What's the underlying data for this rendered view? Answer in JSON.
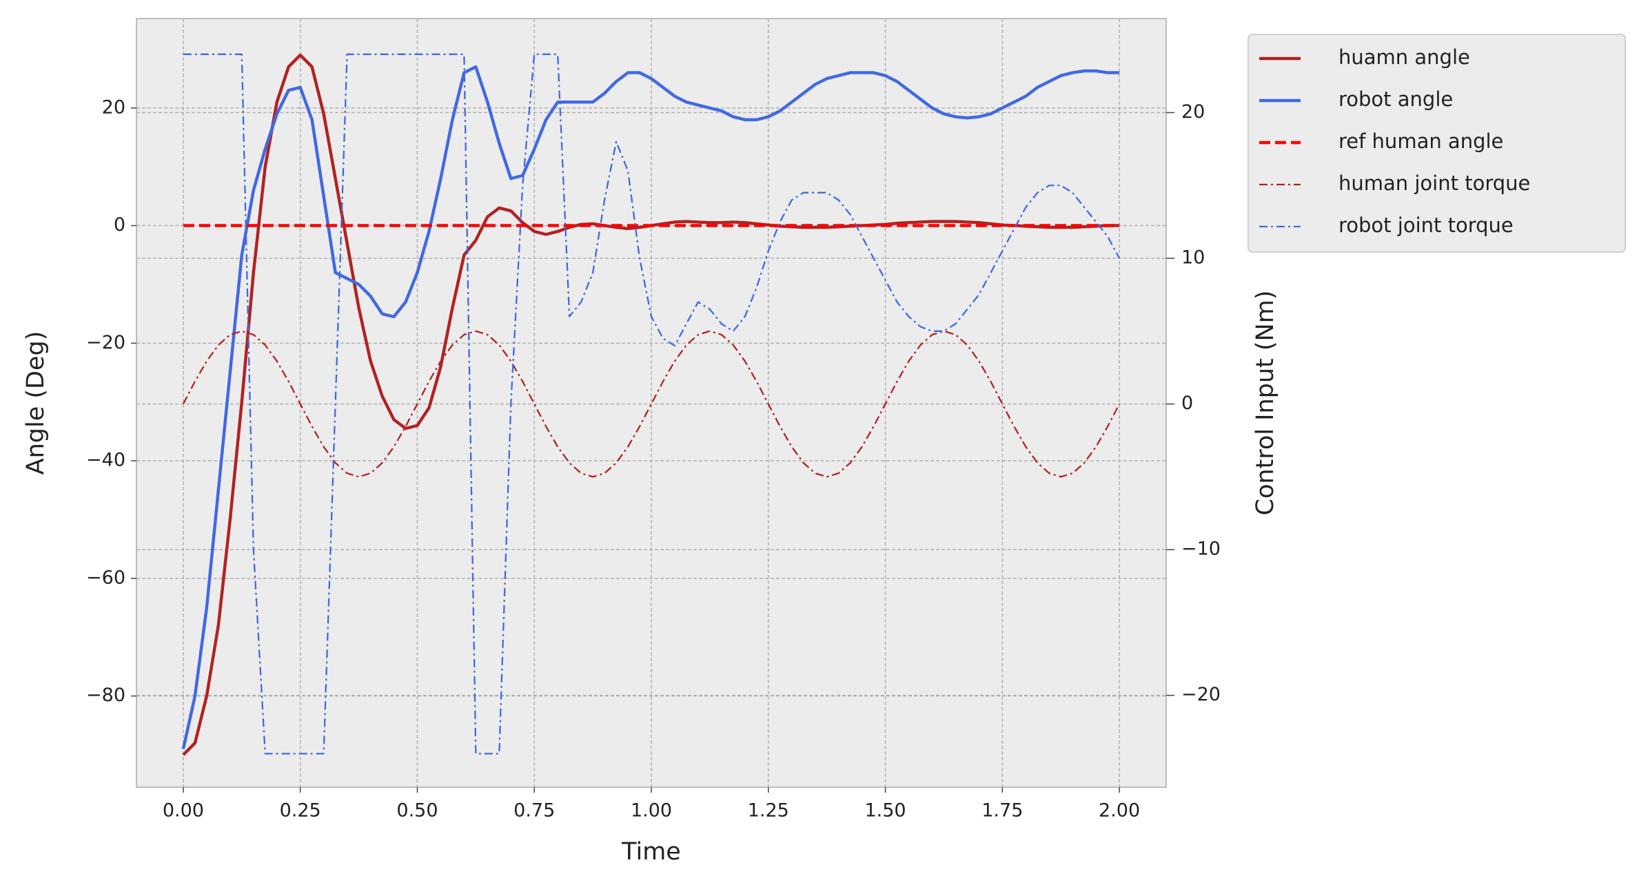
{
  "chart_data": {
    "type": "line",
    "xlabel": "Time",
    "ylabel": "Angle (Deg)",
    "y2label": "Control Input (Nm)",
    "xlim": [
      -0.1,
      2.1
    ],
    "ylim": [
      -95.5,
      35.2
    ],
    "y2lim": [
      -26.3,
      26.45
    ],
    "xticks": [
      {
        "value": 0,
        "label": "0.00"
      },
      {
        "value": 0.25,
        "label": "0.25"
      },
      {
        "value": 0.5,
        "label": "0.50"
      },
      {
        "value": 0.75,
        "label": "0.75"
      },
      {
        "value": 1,
        "label": "1.00"
      },
      {
        "value": 1.25,
        "label": "1.25"
      },
      {
        "value": 1.5,
        "label": "1.50"
      },
      {
        "value": 1.75,
        "label": "1.75"
      },
      {
        "value": 2,
        "label": "2.00"
      }
    ],
    "yticks": [
      {
        "value": -80,
        "label": "−80"
      },
      {
        "value": -60,
        "label": "−60"
      },
      {
        "value": -40,
        "label": "−40"
      },
      {
        "value": -20,
        "label": "−20"
      },
      0,
      20
    ],
    "y2ticks": [
      {
        "value": -20,
        "label": "−20"
      },
      {
        "value": -10,
        "label": "−10"
      },
      0,
      10,
      20
    ],
    "grid": true,
    "legend": "outside upper right",
    "x": [
      0,
      0.025,
      0.05,
      0.075,
      0.1,
      0.125,
      0.15,
      0.175,
      0.2,
      0.225,
      0.25,
      0.275,
      0.3,
      0.325,
      0.35,
      0.375,
      0.4,
      0.425,
      0.45,
      0.475,
      0.5,
      0.525,
      0.55,
      0.575,
      0.6,
      0.625,
      0.65,
      0.675,
      0.7,
      0.725,
      0.75,
      0.775,
      0.8,
      0.825,
      0.85,
      0.875,
      0.9,
      0.925,
      0.95,
      0.975,
      1,
      1.025,
      1.05,
      1.075,
      1.1,
      1.125,
      1.15,
      1.175,
      1.2,
      1.225,
      1.25,
      1.275,
      1.3,
      1.325,
      1.35,
      1.375,
      1.4,
      1.425,
      1.45,
      1.475,
      1.5,
      1.525,
      1.55,
      1.575,
      1.6,
      1.625,
      1.65,
      1.675,
      1.7,
      1.725,
      1.75,
      1.775,
      1.8,
      1.825,
      1.85,
      1.875,
      1.9,
      1.925,
      1.95,
      1.975,
      2
    ],
    "series": [
      {
        "name": "huamn angle",
        "color": "#b22222",
        "linestyle": "solid",
        "linewidth": 4.5,
        "values": [
          -90,
          -88,
          -80,
          -68,
          -50,
          -30,
          -8,
          10,
          21,
          27,
          29,
          27,
          19,
          8,
          -3,
          -14,
          -23,
          -29,
          -33,
          -34.5,
          -34,
          -31,
          -24,
          -14,
          -5,
          -2.5,
          1.5,
          3,
          2.5,
          0.5,
          -1,
          -1.5,
          -1,
          -0.3,
          0.2,
          0.3,
          0,
          -0.3,
          -0.5,
          -0.3,
          0,
          0.3,
          0.6,
          0.7,
          0.6,
          0.5,
          0.5,
          0.6,
          0.5,
          0.3,
          0.1,
          -0.1,
          -0.2,
          -0.3,
          -0.3,
          -0.3,
          -0.2,
          -0.1,
          0,
          0.1,
          0.2,
          0.4,
          0.5,
          0.6,
          0.7,
          0.7,
          0.7,
          0.6,
          0.5,
          0.3,
          0.1,
          0,
          -0.1,
          -0.2,
          -0.3,
          -0.3,
          -0.3,
          -0.2,
          -0.1,
          0,
          0
        ]
      },
      {
        "name": "robot angle",
        "color": "#4169e1",
        "linestyle": "solid",
        "linewidth": 4.5,
        "values": [
          -89,
          -80,
          -65,
          -45,
          -25,
          -5,
          6,
          13,
          19,
          23,
          23.5,
          18,
          5,
          -8,
          -9,
          -10,
          -12,
          -15,
          -15.5,
          -13,
          -8,
          -1,
          8,
          18,
          26,
          27,
          21,
          14,
          8,
          8.5,
          13,
          18,
          21,
          21,
          21,
          21,
          22.5,
          24.5,
          26,
          26,
          25,
          23.5,
          22,
          21,
          20.5,
          20,
          19.5,
          18.5,
          18,
          18,
          18.5,
          19.5,
          21,
          22.5,
          24,
          25,
          25.5,
          26,
          26,
          26,
          25.5,
          24.5,
          23,
          21.5,
          20,
          19,
          18.5,
          18.3,
          18.5,
          19,
          20,
          21,
          22,
          23.5,
          24.5,
          25.5,
          26,
          26.3,
          26.3,
          26,
          26
        ]
      },
      {
        "name": "ref human angle",
        "color": "#ff0000",
        "linestyle": "dashed",
        "linewidth": 4.5,
        "x": [
          0,
          2
        ],
        "values": [
          0,
          0
        ]
      },
      {
        "name": "human joint torque",
        "color": "#b22222",
        "linestyle": "dashdot",
        "linewidth": 2.3,
        "axis": "y2",
        "values": [
          0,
          1.545,
          2.939,
          4.045,
          4.755,
          5,
          4.755,
          4.045,
          2.939,
          1.545,
          0,
          -1.545,
          -2.939,
          -4.045,
          -4.755,
          -5,
          -4.755,
          -4.045,
          -2.939,
          -1.545,
          0,
          1.545,
          2.939,
          4.045,
          4.755,
          5,
          4.755,
          4.045,
          2.939,
          1.545,
          0,
          -1.545,
          -2.939,
          -4.045,
          -4.755,
          -5,
          -4.755,
          -4.045,
          -2.939,
          -1.545,
          0,
          1.545,
          2.939,
          4.045,
          4.755,
          5,
          4.755,
          4.045,
          2.939,
          1.545,
          0,
          -1.545,
          -2.939,
          -4.045,
          -4.755,
          -5,
          -4.755,
          -4.045,
          -2.939,
          -1.545,
          0,
          1.545,
          2.939,
          4.045,
          4.755,
          5,
          4.755,
          4.045,
          2.939,
          1.545,
          0,
          -1.545,
          -2.939,
          -4.045,
          -4.755,
          -5,
          -4.755,
          -4.045,
          -2.939,
          -1.545,
          0
        ]
      },
      {
        "name": "robot joint torque",
        "color": "#4169e1",
        "linestyle": "dashdot",
        "linewidth": 2.3,
        "axis": "y2",
        "values": [
          24,
          24,
          24,
          24,
          24,
          24,
          -10,
          -24,
          -24,
          -24,
          -24,
          -24,
          -24,
          0,
          24,
          24,
          24,
          24,
          24,
          24,
          24,
          24,
          24,
          24,
          24,
          -24,
          -24,
          -24,
          0,
          15,
          24,
          24,
          24,
          6,
          7,
          9,
          14,
          18,
          16,
          10,
          6,
          4.5,
          4,
          5.5,
          7,
          6.5,
          5.5,
          5,
          6,
          8,
          10.5,
          12.5,
          14,
          14.5,
          14.5,
          14.5,
          14,
          13,
          11.5,
          10,
          8.5,
          7,
          6,
          5.3,
          5,
          5,
          5.5,
          6.5,
          7.5,
          9,
          10.5,
          12,
          13.5,
          14.5,
          15,
          15,
          14.5,
          13.5,
          12.5,
          11.5,
          10
        ]
      }
    ]
  }
}
